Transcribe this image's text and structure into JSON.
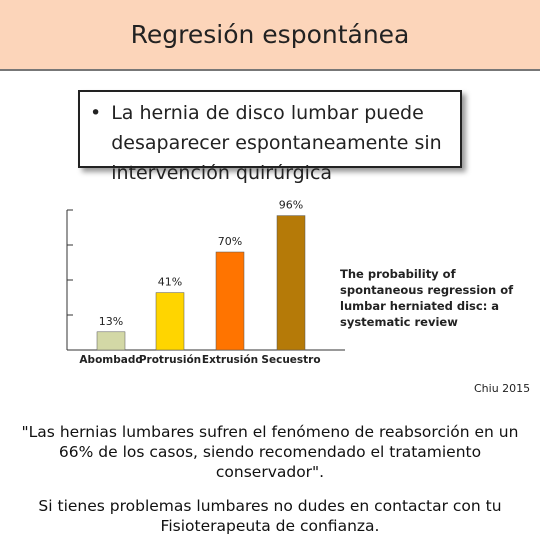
{
  "header": {
    "title": "Regresión espontánea"
  },
  "bullet": "La hernia de disco lumbar puede desaparecer espontaneamente sin intervención quirúrgica",
  "chart_data": {
    "type": "bar",
    "categories": [
      "Abombado",
      "Protrusión",
      "Extrusión",
      "Secuestro"
    ],
    "values": [
      13,
      41,
      70,
      96
    ],
    "value_labels": [
      "13%",
      "41%",
      "70%",
      "96%"
    ],
    "colors": [
      "#d3d8a6",
      "#ffd500",
      "#ff7400",
      "#b57a08"
    ],
    "ylim": [
      0,
      100
    ],
    "yticks": [
      0,
      25,
      50,
      75,
      100
    ],
    "annotation": "The probability of spontaneous regression of lumbar herniated disc: a systematic review"
  },
  "citation": "Chiu 2015",
  "footer": [
    "\"Las hernias lumbares sufren el fenómeno de reabsorción en un 66% de los casos, siendo recomendado el tratamiento conservador\".",
    "Si tienes problemas lumbares no dudes en contactar con tu Fisioterapeuta de confianza."
  ]
}
